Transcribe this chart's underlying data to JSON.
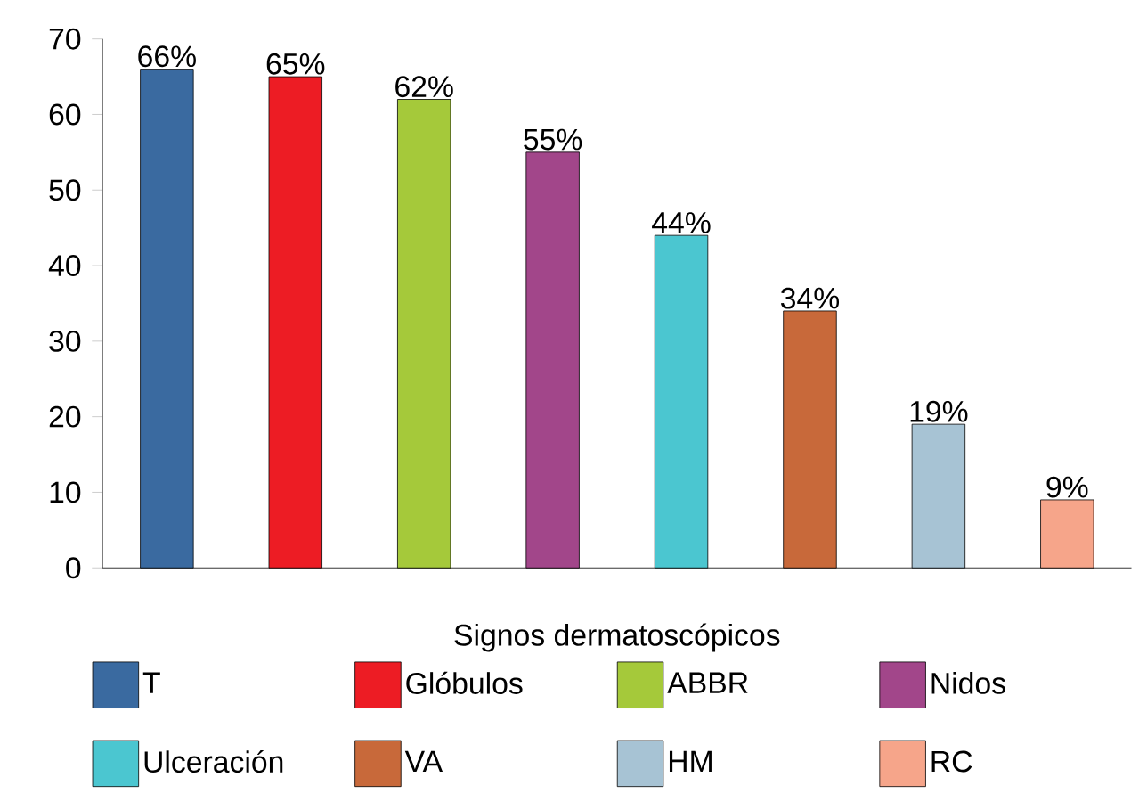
{
  "chart_data": {
    "type": "bar",
    "categories": [
      null,
      null,
      null,
      null,
      null,
      null,
      null,
      null
    ],
    "series": [
      {
        "name": "T",
        "color": "#3a6aa0",
        "values": [
          66,
          null,
          null,
          null,
          null,
          null,
          null,
          null
        ],
        "value_labels": [
          "66%",
          null,
          null,
          null,
          null,
          null,
          null,
          null
        ]
      },
      {
        "name": "Glóbulos",
        "color": "#ed1c24",
        "values": [
          null,
          65,
          null,
          null,
          null,
          null,
          null,
          null
        ],
        "value_labels": [
          null,
          "65%",
          null,
          null,
          null,
          null,
          null,
          null
        ]
      },
      {
        "name": "ABBR",
        "color": "#a5c93a",
        "values": [
          null,
          null,
          62,
          null,
          null,
          null,
          null,
          null
        ],
        "value_labels": [
          null,
          null,
          "62%",
          null,
          null,
          null,
          null,
          null
        ]
      },
      {
        "name": "Nidos",
        "color": "#a2468a",
        "values": [
          null,
          null,
          null,
          55,
          null,
          null,
          null,
          null
        ],
        "value_labels": [
          null,
          null,
          null,
          "55%",
          null,
          null,
          null,
          null
        ]
      },
      {
        "name": "Ulceración",
        "color": "#4bc6d0",
        "values": [
          null,
          null,
          null,
          null,
          44,
          null,
          null,
          null
        ],
        "value_labels": [
          null,
          null,
          null,
          null,
          "44%",
          null,
          null,
          null
        ]
      },
      {
        "name": "VA",
        "color": "#c8693a",
        "values": [
          null,
          null,
          null,
          null,
          null,
          34,
          null,
          null
        ],
        "value_labels": [
          null,
          null,
          null,
          null,
          null,
          "34%",
          null,
          null
        ]
      },
      {
        "name": "HM",
        "color": "#a7c3d4",
        "values": [
          null,
          null,
          null,
          null,
          null,
          null,
          19,
          null
        ],
        "value_labels": [
          null,
          null,
          null,
          null,
          null,
          null,
          "19%",
          null
        ]
      },
      {
        "name": "RC",
        "color": "#f6a58a",
        "values": [
          null,
          null,
          null,
          null,
          null,
          null,
          null,
          9
        ],
        "value_labels": [
          null,
          null,
          null,
          null,
          null,
          null,
          null,
          "9%"
        ]
      }
    ],
    "xlabel": "Signos dermatoscópicos",
    "ylim": [
      0,
      70
    ],
    "yticks": [
      0,
      10,
      20,
      30,
      40,
      50,
      60,
      70
    ],
    "tick_labels": "y",
    "legend": "bottom",
    "grid": false
  }
}
